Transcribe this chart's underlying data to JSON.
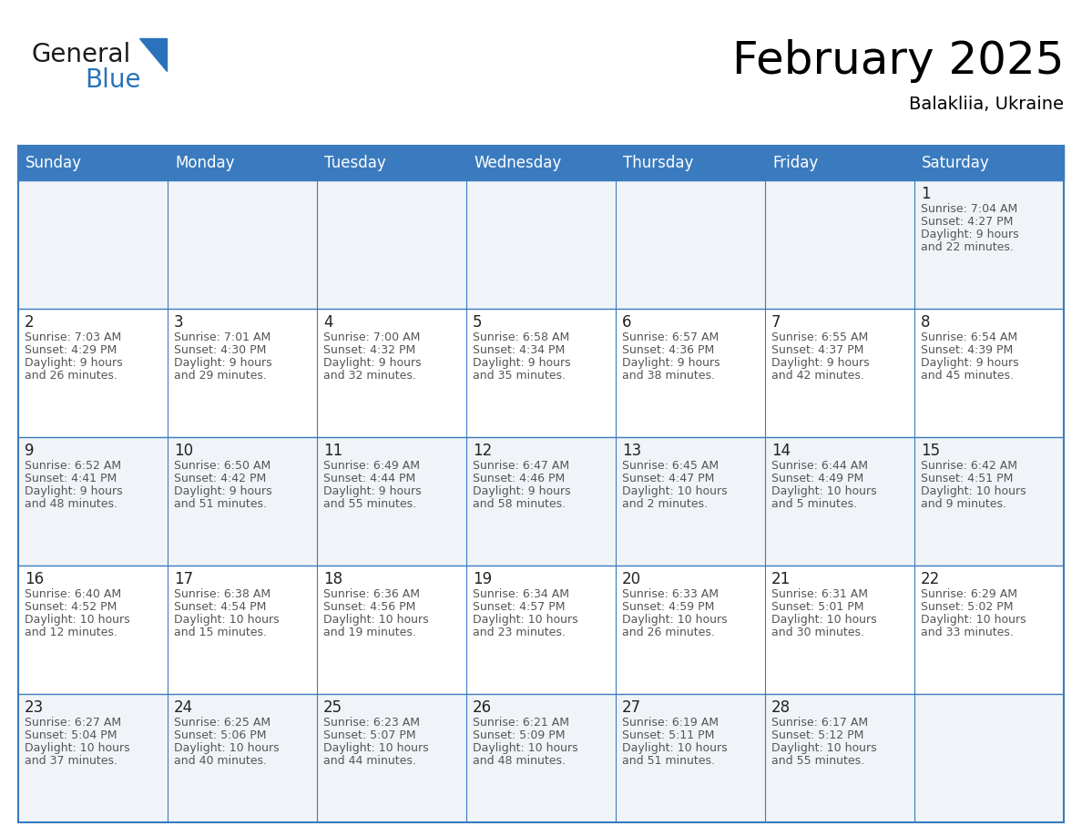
{
  "title": "February 2025",
  "subtitle": "Balakliia, Ukraine",
  "header_color": "#3a7bbf",
  "header_text_color": "#ffffff",
  "cell_bg_row0": "#f0f4f8",
  "cell_bg_row1": "#ffffff",
  "cell_bg_row2": "#f0f4f8",
  "cell_bg_row3": "#ffffff",
  "cell_bg_row4": "#f0f4f8",
  "day_headers": [
    "Sunday",
    "Monday",
    "Tuesday",
    "Wednesday",
    "Thursday",
    "Friday",
    "Saturday"
  ],
  "days": [
    {
      "day": 1,
      "col": 6,
      "row": 0,
      "sunrise": "7:04 AM",
      "sunset": "4:27 PM",
      "daylight_line1": "9 hours",
      "daylight_line2": "and 22 minutes."
    },
    {
      "day": 2,
      "col": 0,
      "row": 1,
      "sunrise": "7:03 AM",
      "sunset": "4:29 PM",
      "daylight_line1": "9 hours",
      "daylight_line2": "and 26 minutes."
    },
    {
      "day": 3,
      "col": 1,
      "row": 1,
      "sunrise": "7:01 AM",
      "sunset": "4:30 PM",
      "daylight_line1": "9 hours",
      "daylight_line2": "and 29 minutes."
    },
    {
      "day": 4,
      "col": 2,
      "row": 1,
      "sunrise": "7:00 AM",
      "sunset": "4:32 PM",
      "daylight_line1": "9 hours",
      "daylight_line2": "and 32 minutes."
    },
    {
      "day": 5,
      "col": 3,
      "row": 1,
      "sunrise": "6:58 AM",
      "sunset": "4:34 PM",
      "daylight_line1": "9 hours",
      "daylight_line2": "and 35 minutes."
    },
    {
      "day": 6,
      "col": 4,
      "row": 1,
      "sunrise": "6:57 AM",
      "sunset": "4:36 PM",
      "daylight_line1": "9 hours",
      "daylight_line2": "and 38 minutes."
    },
    {
      "day": 7,
      "col": 5,
      "row": 1,
      "sunrise": "6:55 AM",
      "sunset": "4:37 PM",
      "daylight_line1": "9 hours",
      "daylight_line2": "and 42 minutes."
    },
    {
      "day": 8,
      "col": 6,
      "row": 1,
      "sunrise": "6:54 AM",
      "sunset": "4:39 PM",
      "daylight_line1": "9 hours",
      "daylight_line2": "and 45 minutes."
    },
    {
      "day": 9,
      "col": 0,
      "row": 2,
      "sunrise": "6:52 AM",
      "sunset": "4:41 PM",
      "daylight_line1": "9 hours",
      "daylight_line2": "and 48 minutes."
    },
    {
      "day": 10,
      "col": 1,
      "row": 2,
      "sunrise": "6:50 AM",
      "sunset": "4:42 PM",
      "daylight_line1": "9 hours",
      "daylight_line2": "and 51 minutes."
    },
    {
      "day": 11,
      "col": 2,
      "row": 2,
      "sunrise": "6:49 AM",
      "sunset": "4:44 PM",
      "daylight_line1": "9 hours",
      "daylight_line2": "and 55 minutes."
    },
    {
      "day": 12,
      "col": 3,
      "row": 2,
      "sunrise": "6:47 AM",
      "sunset": "4:46 PM",
      "daylight_line1": "9 hours",
      "daylight_line2": "and 58 minutes."
    },
    {
      "day": 13,
      "col": 4,
      "row": 2,
      "sunrise": "6:45 AM",
      "sunset": "4:47 PM",
      "daylight_line1": "10 hours",
      "daylight_line2": "and 2 minutes."
    },
    {
      "day": 14,
      "col": 5,
      "row": 2,
      "sunrise": "6:44 AM",
      "sunset": "4:49 PM",
      "daylight_line1": "10 hours",
      "daylight_line2": "and 5 minutes."
    },
    {
      "day": 15,
      "col": 6,
      "row": 2,
      "sunrise": "6:42 AM",
      "sunset": "4:51 PM",
      "daylight_line1": "10 hours",
      "daylight_line2": "and 9 minutes."
    },
    {
      "day": 16,
      "col": 0,
      "row": 3,
      "sunrise": "6:40 AM",
      "sunset": "4:52 PM",
      "daylight_line1": "10 hours",
      "daylight_line2": "and 12 minutes."
    },
    {
      "day": 17,
      "col": 1,
      "row": 3,
      "sunrise": "6:38 AM",
      "sunset": "4:54 PM",
      "daylight_line1": "10 hours",
      "daylight_line2": "and 15 minutes."
    },
    {
      "day": 18,
      "col": 2,
      "row": 3,
      "sunrise": "6:36 AM",
      "sunset": "4:56 PM",
      "daylight_line1": "10 hours",
      "daylight_line2": "and 19 minutes."
    },
    {
      "day": 19,
      "col": 3,
      "row": 3,
      "sunrise": "6:34 AM",
      "sunset": "4:57 PM",
      "daylight_line1": "10 hours",
      "daylight_line2": "and 23 minutes."
    },
    {
      "day": 20,
      "col": 4,
      "row": 3,
      "sunrise": "6:33 AM",
      "sunset": "4:59 PM",
      "daylight_line1": "10 hours",
      "daylight_line2": "and 26 minutes."
    },
    {
      "day": 21,
      "col": 5,
      "row": 3,
      "sunrise": "6:31 AM",
      "sunset": "5:01 PM",
      "daylight_line1": "10 hours",
      "daylight_line2": "and 30 minutes."
    },
    {
      "day": 22,
      "col": 6,
      "row": 3,
      "sunrise": "6:29 AM",
      "sunset": "5:02 PM",
      "daylight_line1": "10 hours",
      "daylight_line2": "and 33 minutes."
    },
    {
      "day": 23,
      "col": 0,
      "row": 4,
      "sunrise": "6:27 AM",
      "sunset": "5:04 PM",
      "daylight_line1": "10 hours",
      "daylight_line2": "and 37 minutes."
    },
    {
      "day": 24,
      "col": 1,
      "row": 4,
      "sunrise": "6:25 AM",
      "sunset": "5:06 PM",
      "daylight_line1": "10 hours",
      "daylight_line2": "and 40 minutes."
    },
    {
      "day": 25,
      "col": 2,
      "row": 4,
      "sunrise": "6:23 AM",
      "sunset": "5:07 PM",
      "daylight_line1": "10 hours",
      "daylight_line2": "and 44 minutes."
    },
    {
      "day": 26,
      "col": 3,
      "row": 4,
      "sunrise": "6:21 AM",
      "sunset": "5:09 PM",
      "daylight_line1": "10 hours",
      "daylight_line2": "and 48 minutes."
    },
    {
      "day": 27,
      "col": 4,
      "row": 4,
      "sunrise": "6:19 AM",
      "sunset": "5:11 PM",
      "daylight_line1": "10 hours",
      "daylight_line2": "and 51 minutes."
    },
    {
      "day": 28,
      "col": 5,
      "row": 4,
      "sunrise": "6:17 AM",
      "sunset": "5:12 PM",
      "daylight_line1": "10 hours",
      "daylight_line2": "and 55 minutes."
    }
  ],
  "num_rows": 5,
  "num_cols": 7,
  "text_color_day": "#222222",
  "text_color_info": "#555555",
  "grid_line_color": "#3a7bbf",
  "logo_general_color": "#1a1a1a",
  "logo_blue_color": "#2a72bb",
  "title_fontsize": 36,
  "subtitle_fontsize": 14,
  "header_fontsize": 12,
  "day_num_fontsize": 12,
  "info_fontsize": 9
}
